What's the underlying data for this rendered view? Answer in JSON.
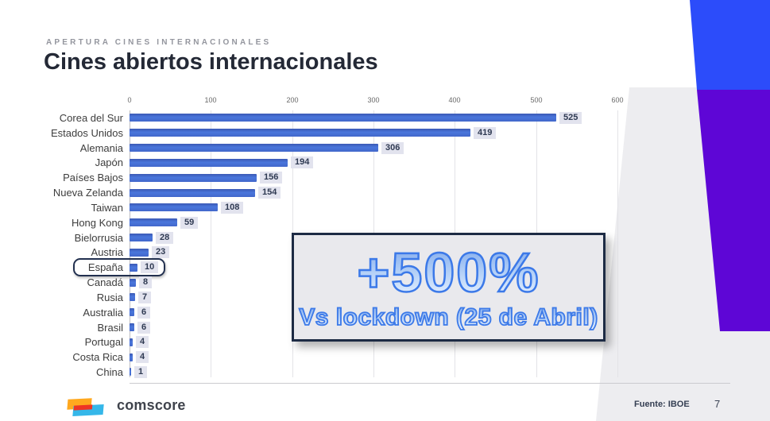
{
  "header": {
    "eyebrow": "APERTURA CINES INTERNACIONALES",
    "title": "Cines abiertos internacionales"
  },
  "callout": {
    "headline": "+500%",
    "subline": "Vs lockdown (25 de Abril)"
  },
  "footer": {
    "logo_text": "comscore",
    "logo_icon": "comscore-logo",
    "source": "Fuente: IBOE",
    "page": "7"
  },
  "colors": {
    "accent_blue": "#2C4CFA",
    "accent_purple": "#5E06D6",
    "band_gray": "#EDEDF0",
    "bar_blue": "#4470D4",
    "value_chip_bg": "#E2E3EE",
    "callout_stroke": "#3C79E8",
    "highlight_border": "#22304F"
  },
  "chart_data": {
    "type": "bar",
    "orientation": "horizontal",
    "title": "Cines abiertos internacionales",
    "categories": [
      "Corea del Sur",
      "Estados Unidos",
      "Alemania",
      "Japón",
      "Países Bajos",
      "Nueva Zelanda",
      "Taiwan",
      "Hong Kong",
      "Bielorrusia",
      "Austria",
      "España",
      "Canadá",
      "Rusia",
      "Australia",
      "Brasil",
      "Portugal",
      "Costa Rica",
      "China"
    ],
    "values": [
      525,
      419,
      306,
      194,
      156,
      154,
      108,
      59,
      28,
      23,
      10,
      8,
      7,
      6,
      6,
      4,
      4,
      1
    ],
    "x_ticks": [
      0,
      100,
      200,
      300,
      400,
      500,
      600
    ],
    "xlim": [
      0,
      600
    ],
    "xlabel": "",
    "ylabel": "",
    "grid": true,
    "legend": false,
    "value_labels_shown": true,
    "highlighted_category": "España",
    "annotation": "+500% Vs lockdown (25 de Abril)"
  }
}
